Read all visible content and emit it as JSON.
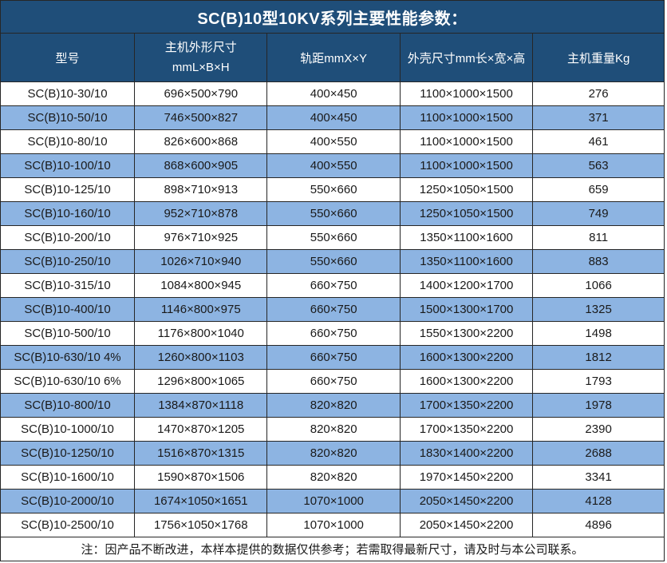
{
  "note": "注：因产品不断改进，本样本提供的数据仅供参考；若需取得最新尺寸，请及时与本公司联系。",
  "header": {
    "model": "型号",
    "main_dim_line1": "主机外形尺寸",
    "main_dim_line2": "mmL×B×H",
    "rail": "轨距mmX×Y",
    "shell": "外壳尺寸mm长×宽×高",
    "weight": "主机重量Kg"
  },
  "chart_data": {
    "type": "table",
    "title": "SC(B)10型10KV系列主要性能参数：",
    "columns": [
      "型号",
      "主机外形尺寸 mmL×B×H",
      "轨距mmX×Y",
      "外壳尺寸mm长×宽×高",
      "主机重量Kg"
    ],
    "rows": [
      [
        "SC(B)10-30/10",
        "696×500×790",
        "400×450",
        "1100×1000×1500",
        "276"
      ],
      [
        "SC(B)10-50/10",
        "746×500×827",
        "400×450",
        "1100×1000×1500",
        "371"
      ],
      [
        "SC(B)10-80/10",
        "826×600×868",
        "400×550",
        "1100×1000×1500",
        "461"
      ],
      [
        "SC(B)10-100/10",
        "868×600×905",
        "400×550",
        "1100×1000×1500",
        "563"
      ],
      [
        "SC(B)10-125/10",
        "898×710×913",
        "550×660",
        "1250×1050×1500",
        "659"
      ],
      [
        "SC(B)10-160/10",
        "952×710×878",
        "550×660",
        "1250×1050×1500",
        "749"
      ],
      [
        "SC(B)10-200/10",
        "976×710×925",
        "550×660",
        "1350×1100×1600",
        "811"
      ],
      [
        "SC(B)10-250/10",
        "1026×710×940",
        "550×660",
        "1350×1100×1600",
        "883"
      ],
      [
        "SC(B)10-315/10",
        "1084×800×945",
        "660×750",
        "1400×1200×1700",
        "1066"
      ],
      [
        "SC(B)10-400/10",
        "1146×800×975",
        "660×750",
        "1500×1300×1700",
        "1325"
      ],
      [
        "SC(B)10-500/10",
        "1176×800×1040",
        "660×750",
        "1550×1300×2200",
        "1498"
      ],
      [
        "SC(B)10-630/10 4%",
        "1260×800×1103",
        "660×750",
        "1600×1300×2200",
        "1812"
      ],
      [
        "SC(B)10-630/10 6%",
        "1296×800×1065",
        "660×750",
        "1600×1300×2200",
        "1793"
      ],
      [
        "SC(B)10-800/10",
        "1384×870×1118",
        "820×820",
        "1700×1350×2200",
        "1978"
      ],
      [
        "SC(B)10-1000/10",
        "1470×870×1205",
        "820×820",
        "1700×1350×2200",
        "2390"
      ],
      [
        "SC(B)10-1250/10",
        "1516×870×1315",
        "820×820",
        "1830×1400×2200",
        "2688"
      ],
      [
        "SC(B)10-1600/10",
        "1590×870×1506",
        "820×820",
        "1970×1450×2200",
        "3341"
      ],
      [
        "SC(B)10-2000/10",
        "1674×1050×1651",
        "1070×1000",
        "2050×1450×2200",
        "4128"
      ],
      [
        "SC(B)10-2500/10",
        "1756×1050×1768",
        "1070×1000",
        "2050×1450×2200",
        "4896"
      ]
    ]
  },
  "colors": {
    "header_bg": "#1F4E79",
    "header_text": "#FFFFFF",
    "alt_row_bg": "#8DB4E2",
    "row_bg": "#FFFFFF",
    "border": "#262626",
    "body_text": "#1A1A1A"
  }
}
